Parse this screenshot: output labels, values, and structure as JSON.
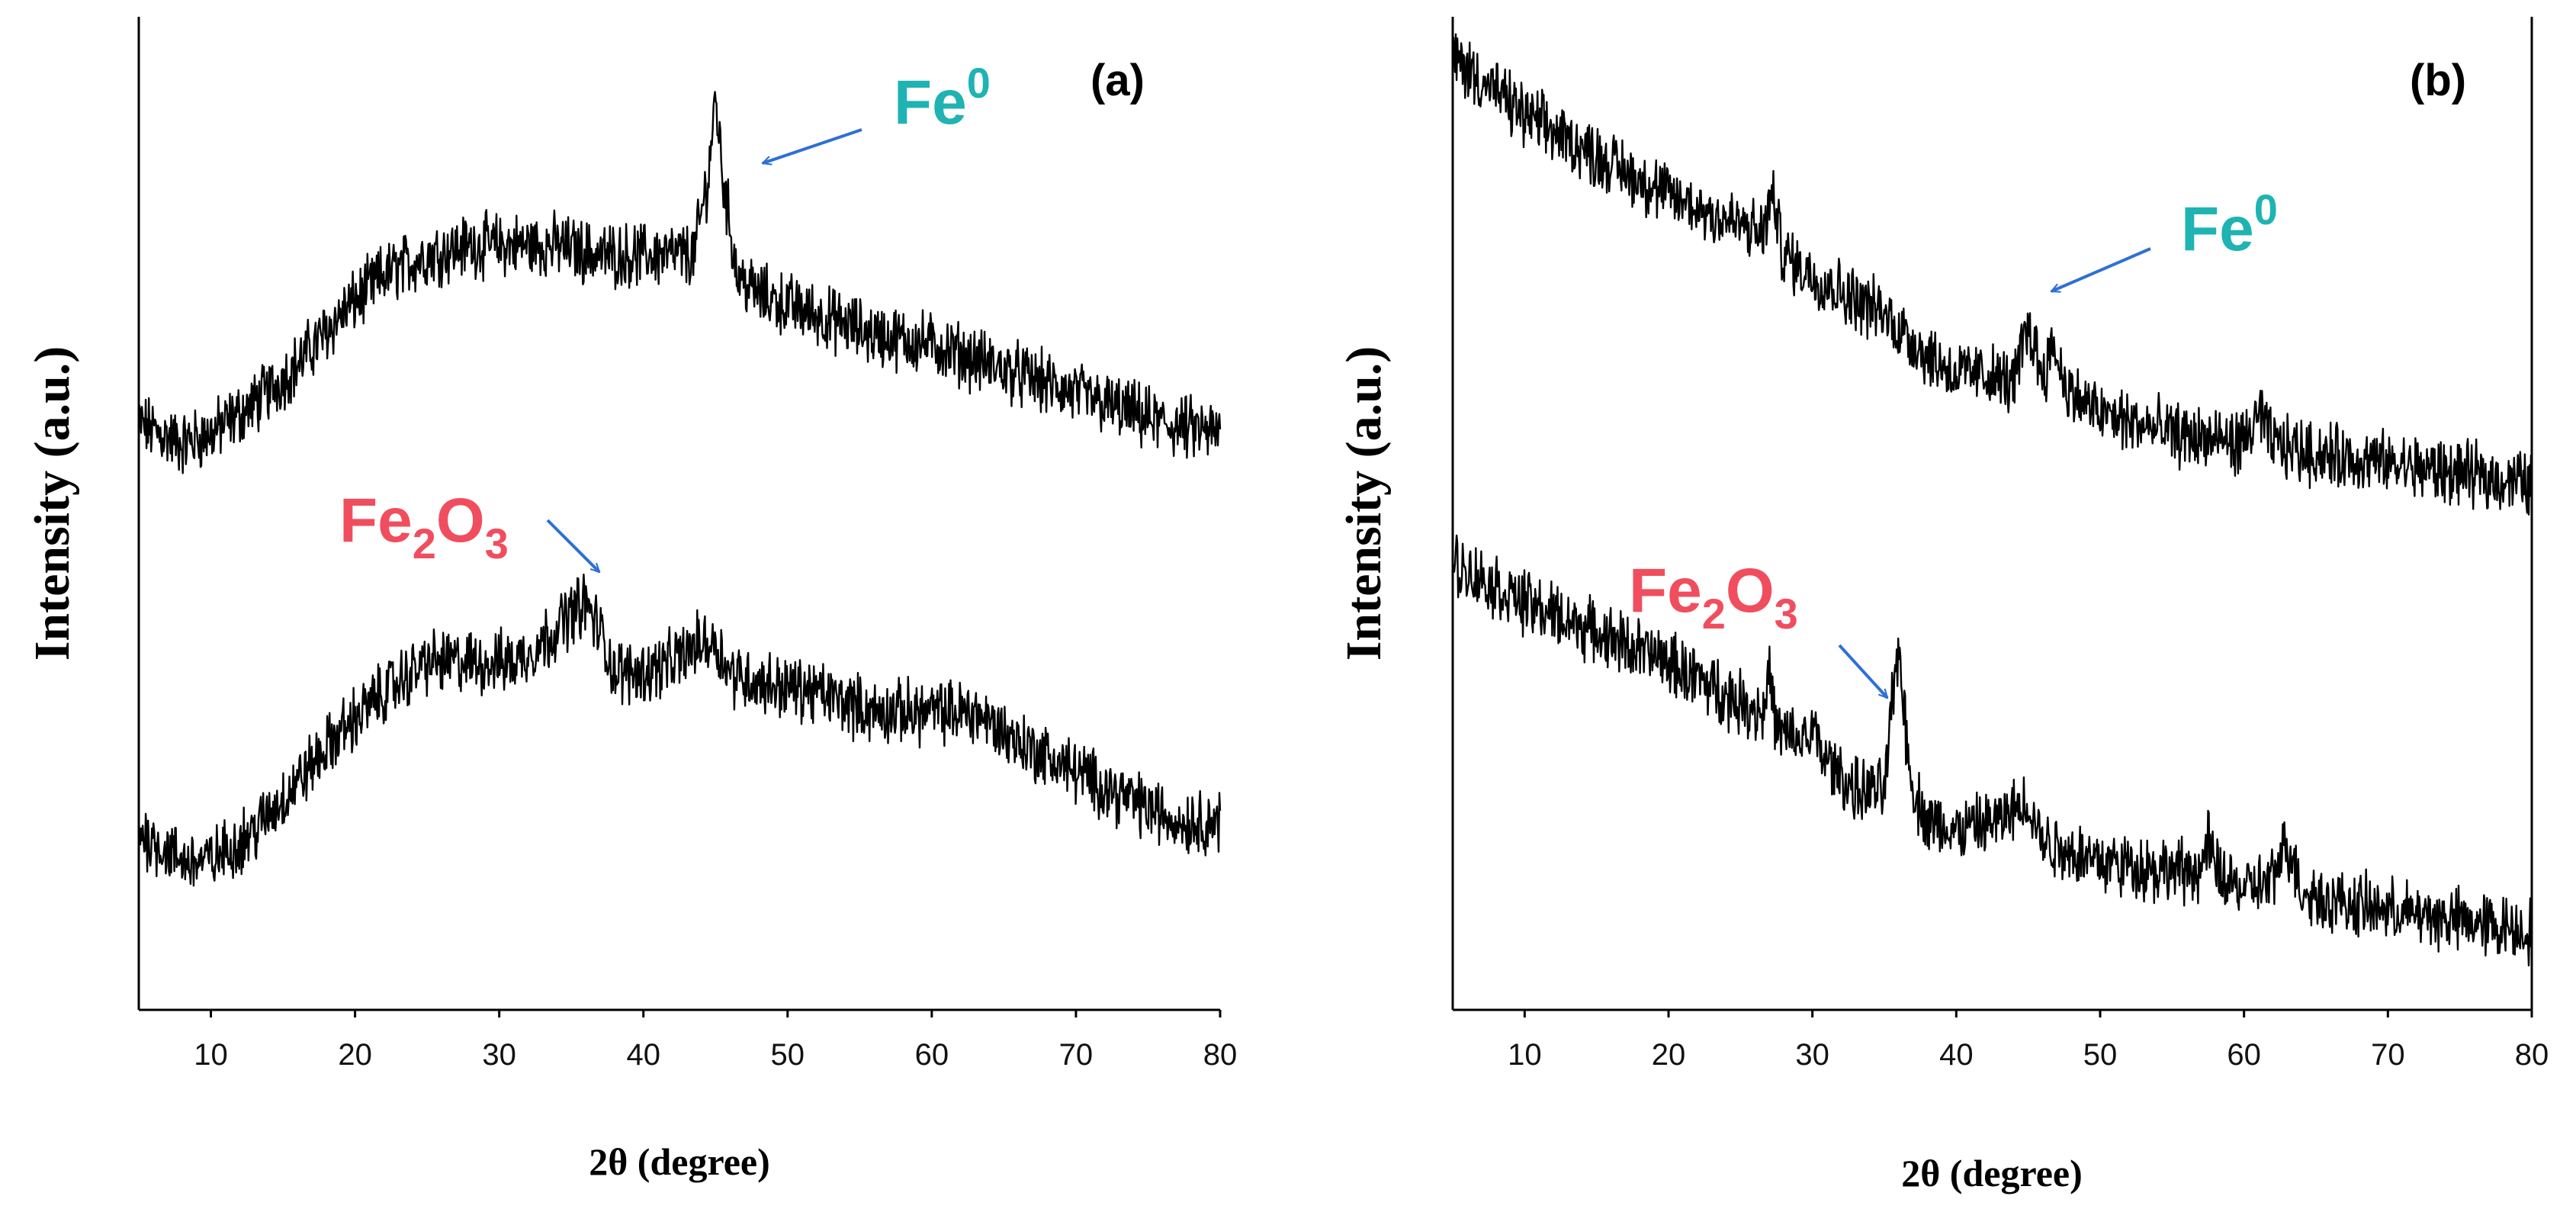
{
  "colors": {
    "fe0": "#1fb3b3",
    "fe2o3": "#f04e5e",
    "arrow": "#2f6fd6",
    "trace": "#000000"
  },
  "chart_data": [
    {
      "type": "line",
      "panel_label": "(a)",
      "xlabel": "2θ (degree)",
      "ylabel": "Intensity (a.u.)",
      "xlim": [
        5,
        80
      ],
      "ylim": [
        0,
        100
      ],
      "xticks": [
        "10",
        "20",
        "30",
        "40",
        "50",
        "60",
        "70",
        "80"
      ],
      "annotations": [
        {
          "symbol": "Fe",
          "sub": "2",
          "symbol2": "O",
          "sub2": "3",
          "sup": "",
          "color_key": "fe2o3",
          "points_to_x": 36.5,
          "points_to_y": 39
        },
        {
          "symbol": "Fe",
          "sub": "",
          "symbol2": "",
          "sub2": "",
          "sup": "0",
          "color_key": "fe0",
          "points_to_x": 45,
          "points_to_y": 86
        }
      ],
      "series": [
        {
          "name": "upper",
          "x": [
            5,
            8,
            10,
            13,
            16,
            19,
            22,
            25,
            28,
            31,
            34,
            37,
            40,
            42,
            43.5,
            44.5,
            45,
            45.5,
            46.5,
            48,
            52,
            56,
            60,
            64,
            68,
            72,
            76,
            80
          ],
          "y": [
            59,
            57,
            58,
            61,
            65,
            70,
            74,
            76,
            77,
            77,
            77,
            76,
            76,
            76,
            76,
            84,
            92,
            84,
            74,
            72,
            70,
            68,
            67,
            65,
            63,
            61,
            59,
            58
          ]
        },
        {
          "name": "lower",
          "x": [
            5,
            8,
            10,
            13,
            16,
            19,
            22,
            25,
            28,
            31,
            33,
            35,
            36,
            37,
            38,
            40,
            42,
            44,
            45,
            46,
            48,
            52,
            56,
            60,
            63,
            66,
            70,
            74,
            77,
            80
          ],
          "y": [
            18,
            15,
            15,
            18,
            23,
            28,
            32,
            35,
            35,
            35,
            37,
            40,
            41,
            38,
            34,
            34,
            35,
            37,
            37,
            34,
            33,
            32,
            30,
            30,
            30,
            27,
            24,
            21,
            19,
            19
          ]
        }
      ]
    },
    {
      "type": "line",
      "panel_label": "(b)",
      "xlabel": "2θ (degree)",
      "ylabel": "Intensity (a.u.)",
      "xlim": [
        5,
        80
      ],
      "ylim": [
        0,
        100
      ],
      "xticks": [
        "10",
        "20",
        "30",
        "40",
        "50",
        "60",
        "70",
        "80"
      ],
      "annotations": [
        {
          "symbol": "Fe",
          "sub": "",
          "symbol2": "",
          "sub2": "",
          "sup": "0",
          "color_key": "fe0",
          "points_to_x": 45,
          "points_to_y": 72
        },
        {
          "symbol": "Fe",
          "sub": "2",
          "symbol2": "O",
          "sub2": "3",
          "sup": "",
          "color_key": "fe2o3",
          "points_to_x": 36,
          "points_to_y": 33
        }
      ],
      "series": [
        {
          "name": "upper",
          "x": [
            5,
            10,
            15,
            20,
            25,
            26.5,
            27.2,
            28,
            30,
            35,
            38,
            40,
            42,
            44,
            45,
            46,
            46.8,
            47.3,
            48,
            50,
            55,
            60,
            61,
            62,
            65,
            70,
            75,
            80
          ],
          "y": [
            96,
            90,
            86,
            82,
            79,
            78,
            82,
            76,
            74,
            70,
            66,
            64,
            64,
            63,
            69,
            64,
            67,
            64,
            62,
            60,
            58,
            57,
            60,
            57,
            56,
            55,
            54,
            53
          ]
        },
        {
          "name": "lower",
          "x": [
            5,
            10,
            15,
            20,
            25,
            26.5,
            27,
            27.5,
            29,
            30,
            31,
            33,
            35,
            35.5,
            36,
            36.5,
            37,
            38,
            40,
            43,
            44,
            45,
            46,
            50,
            55,
            57,
            57.5,
            58,
            60,
            62,
            63,
            64,
            66,
            70,
            75,
            80
          ],
          "y": [
            45,
            41,
            38,
            35,
            31,
            30,
            34,
            28,
            27,
            28,
            25,
            22,
            22,
            30,
            37,
            28,
            22,
            19,
            18,
            19,
            20,
            21,
            17,
            15,
            14,
            14,
            17,
            14,
            12,
            13,
            17,
            12,
            11,
            10,
            9,
            8
          ]
        }
      ]
    }
  ]
}
